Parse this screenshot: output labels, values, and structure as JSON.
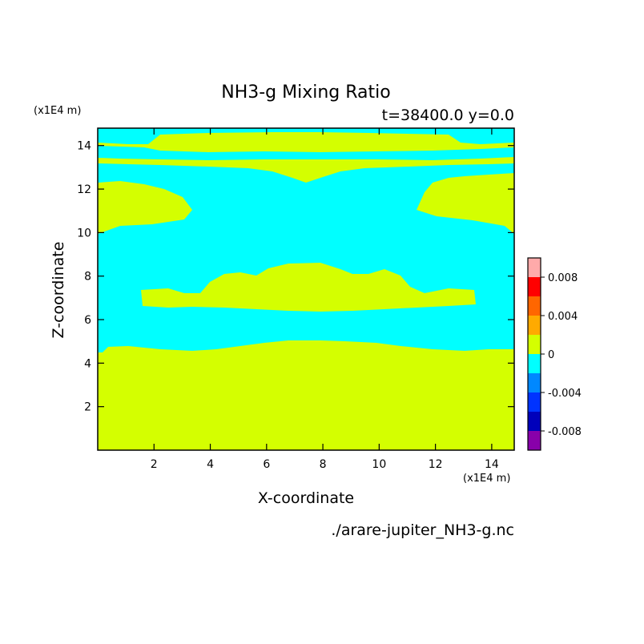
{
  "chart_data": {
    "type": "heatmap",
    "title": "NH3-g Mixing Ratio",
    "subtitle": "t=38400.0 y=0.0",
    "xlabel": "X-coordinate",
    "ylabel": "Z-coordinate",
    "x_unit": "(x1E4 m)",
    "y_unit": "(x1E4 m)",
    "footer": "./arare-jupiter_NH3-g.nc",
    "xlim": [
      0,
      14.8
    ],
    "ylim": [
      0,
      14.8
    ],
    "x_ticks": [
      2,
      4,
      6,
      8,
      10,
      12,
      14
    ],
    "y_ticks": [
      2,
      4,
      6,
      8,
      10,
      12,
      14
    ],
    "grid": false,
    "fill_colors": {
      "zero_to_0.002": "#d4ff00",
      "minus0.002_to_0": "#00ffff"
    },
    "background_value_color": "#d4ff00",
    "regions_negative": [
      {
        "description_band": "lower cyan band",
        "x": [
          0,
          14.8
        ],
        "z_bottom": [
          4.4,
          5.3
        ],
        "z_top": [
          6.5,
          7.4
        ]
      },
      {
        "description_band": "upper cyan region",
        "x": [
          0,
          14.8
        ],
        "z_bottom": [
          10.0,
          11.5
        ],
        "z_top": [
          12.6,
          13.6
        ]
      },
      {
        "description_band": "top cyan strip",
        "x": [
          0,
          14.8
        ],
        "z_bottom": [
          14.3
        ],
        "z_top": [
          14.8
        ]
      }
    ],
    "colorbar": {
      "levels": [
        -0.01,
        -0.008,
        -0.006,
        -0.004,
        -0.002,
        0,
        0.002,
        0.004,
        0.006,
        0.008,
        0.01
      ],
      "colors": [
        "#8800aa",
        "#0000bb",
        "#0033ff",
        "#0088ff",
        "#00ffff",
        "#d4ff00",
        "#ffaa00",
        "#ff6600",
        "#ff0000",
        "#ffaaaa"
      ],
      "tick_labels": [
        {
          "value": 0.008,
          "label": "0.008"
        },
        {
          "value": 0.004,
          "label": "0.004"
        },
        {
          "value": 0,
          "label": "0"
        },
        {
          "value": -0.004,
          "label": "-0.004"
        },
        {
          "value": -0.008,
          "label": "-0.008"
        }
      ]
    }
  }
}
